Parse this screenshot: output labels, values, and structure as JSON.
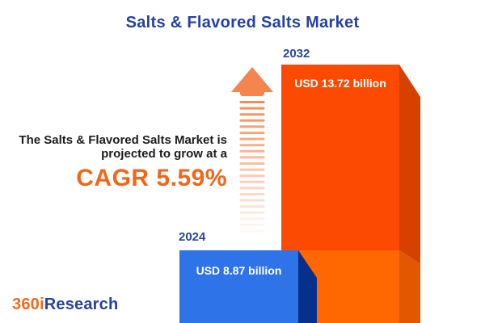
{
  "title": "Salts & Flavored Salts Market",
  "annotation": {
    "line1": "The Salts & Flavored Salts Market is",
    "line2": "projected to grow at a",
    "cagr": "CAGR 5.59%"
  },
  "bars": [
    {
      "year": "2024",
      "value_label": "USD 8.87 billion"
    },
    {
      "year": "2032",
      "value_label": "USD 13.72 billion"
    }
  ],
  "logo": {
    "prefix": "360i",
    "suffix": "Research"
  },
  "colors": {
    "title_blue": "#2342A2",
    "year_blue": "#2645A5",
    "annotation_text": "#1C1C1C",
    "cagr_orange": "#F2661A",
    "arrow_orange": "#F5854E",
    "bar_2032_face": "#FC4A02",
    "bar_2032_side": "#D64100",
    "bar_2032_overlay_face": "#FF6700",
    "bar_2032_overlay_side": "#E15800",
    "bar_2024_face": "#2E74E8",
    "bar_2024_side": "#06308C",
    "value_text": "#FFFFFF",
    "logo_prefix_color": "#F26A21",
    "logo_suffix_color": "#27429F",
    "background": "#FFFFFF"
  },
  "chart_data": {
    "type": "bar",
    "orientation": "vertical",
    "categories": [
      "2024",
      "2032"
    ],
    "values": [
      8.87,
      13.72
    ],
    "unit": "USD billion",
    "bar_labels": [
      "USD 8.87 billion",
      "USD 13.72 billion"
    ],
    "bar_colors": [
      "#2E74E8",
      "#FC4A02"
    ],
    "title": "Salts & Flavored Salts Market",
    "annotation": "The Salts & Flavored Salts Market is projected to grow at a CAGR 5.59%",
    "cagr_percent": 5.59,
    "xlabel": "",
    "ylabel": "",
    "axes": "off",
    "grid": false,
    "legend": "off"
  }
}
